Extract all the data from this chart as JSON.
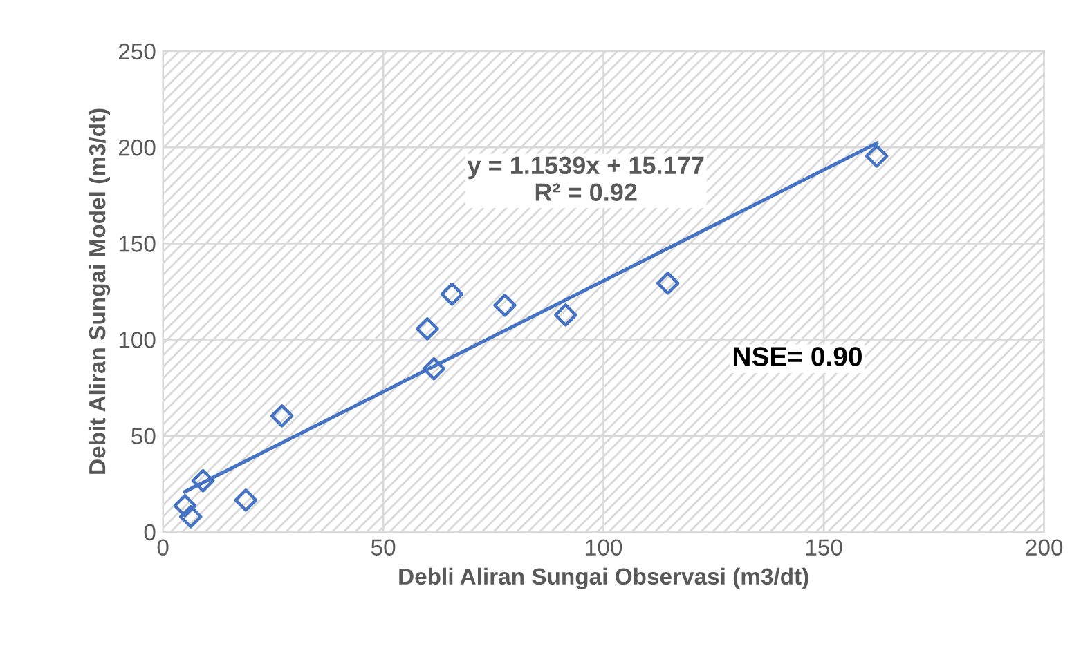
{
  "chart_data": {
    "type": "scatter",
    "xlabel": "Debli Aliran Sungai Observasi (m3/dt)",
    "ylabel": "Debit Aliran Sungai Model (m3/dt)",
    "xlim": [
      0,
      200
    ],
    "ylim": [
      0,
      250
    ],
    "xticks": [
      0,
      50,
      100,
      150,
      200
    ],
    "yticks": [
      0,
      50,
      100,
      150,
      200,
      250
    ],
    "grid": true,
    "series": [
      {
        "marker": "diamond",
        "color": "#4472c4",
        "x": [
          5.0,
          6.3,
          9.1,
          18.8,
          27.0,
          60.0,
          61.5,
          65.6,
          77.6,
          91.4,
          114.6,
          162.0
        ],
        "values": [
          13.6,
          7.9,
          26.6,
          16.5,
          60.3,
          105.6,
          84.8,
          123.6,
          117.8,
          112.8,
          129.3,
          195.4
        ]
      },
      {
        "type": "line",
        "color": "#4472c4",
        "x": [
          5.0,
          162.0
        ],
        "values": [
          20.9,
          202.1
        ]
      }
    ],
    "annotations": [
      "y = 1.1539x + 15.177\nR² = 0.92",
      "NSE= 0.90"
    ]
  }
}
